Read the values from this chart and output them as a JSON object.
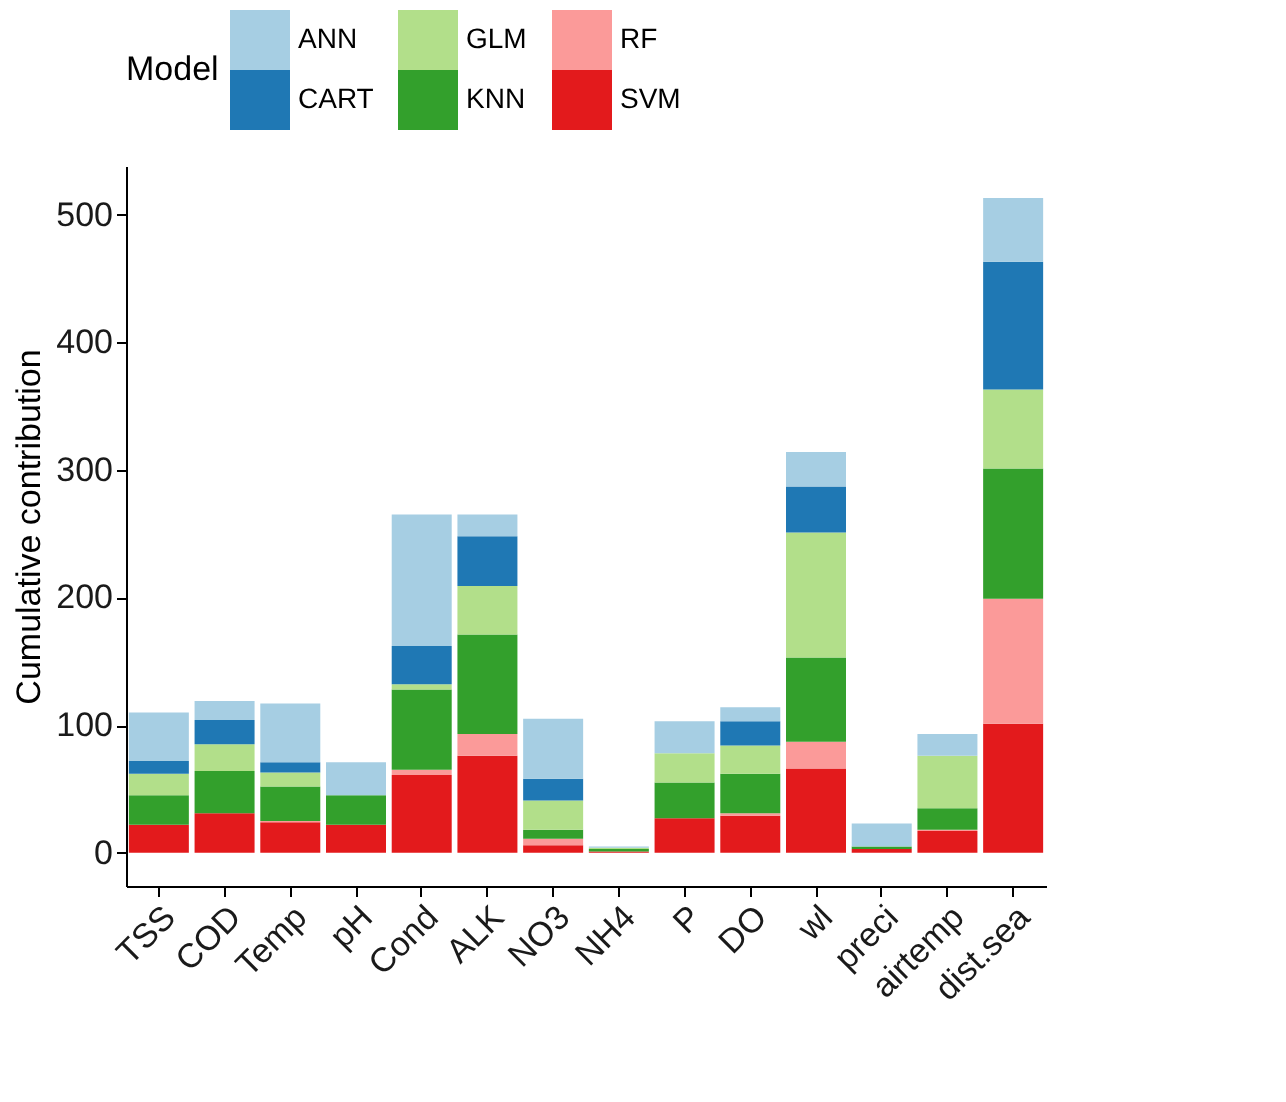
{
  "chart_data": {
    "type": "bar",
    "stacked": true,
    "ylabel": "Cumulative contribution",
    "legend_title": "Model",
    "legend": "top",
    "categories": [
      "TSS",
      "COD",
      "Temp",
      "pH",
      "Cond",
      "ALK",
      "NO3",
      "NH4",
      "P",
      "DO",
      "wl",
      "preci",
      "airtemp",
      "dist.sea"
    ],
    "series": [
      {
        "name": "SVM",
        "color": "#e31a1c",
        "values": [
          22,
          31,
          24,
          22,
          61,
          76,
          6,
          1,
          27,
          29,
          66,
          3,
          17,
          101
        ]
      },
      {
        "name": "RF",
        "color": "#fb9a99",
        "values": [
          0,
          0,
          1,
          0,
          4,
          17,
          5,
          0,
          0,
          2,
          21,
          0,
          1,
          98
        ]
      },
      {
        "name": "KNN",
        "color": "#33a02c",
        "values": [
          23,
          33,
          27,
          23,
          63,
          78,
          7,
          2,
          28,
          31,
          66,
          2,
          17,
          102
        ]
      },
      {
        "name": "GLM",
        "color": "#b2df8a",
        "values": [
          17,
          21,
          11,
          0,
          4,
          38,
          23,
          1,
          23,
          22,
          98,
          0,
          41,
          62
        ]
      },
      {
        "name": "CART",
        "color": "#1f78b4",
        "values": [
          10,
          19,
          8,
          0,
          30,
          39,
          17,
          0,
          0,
          19,
          36,
          0,
          0,
          100
        ]
      },
      {
        "name": "ANN",
        "color": "#a6cee3",
        "values": [
          38,
          15,
          46,
          26,
          103,
          17,
          47,
          1,
          25,
          11,
          27,
          18,
          17,
          50
        ]
      }
    ],
    "ylim": [
      -26,
      538
    ],
    "yticks": [
      0,
      100,
      200,
      300,
      400,
      500
    ],
    "grid": false
  }
}
